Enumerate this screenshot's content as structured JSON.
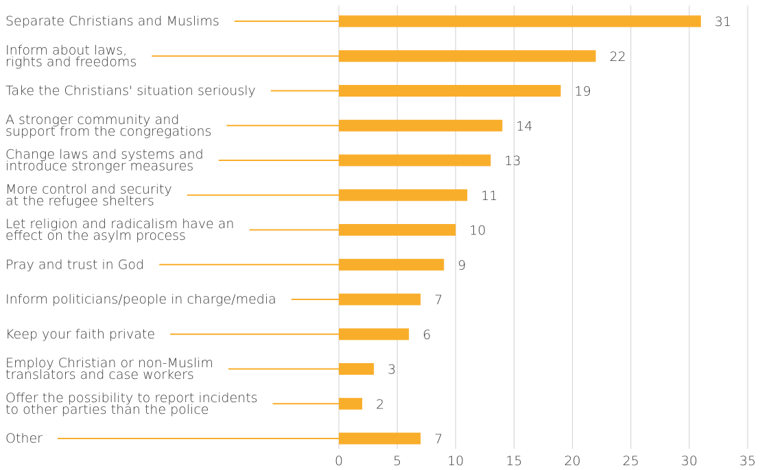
{
  "colors": {
    "bar": "#F9AE2B",
    "grid": "#cfcfcf",
    "text": "#3a3a3a"
  },
  "chart_data": {
    "type": "bar",
    "orientation": "horizontal",
    "categories": [
      [
        "Separate Christians and Muslims"
      ],
      [
        "Inform about laws,",
        "rights and freedoms"
      ],
      [
        "Take the Christians' situation seriously"
      ],
      [
        "A stronger community and",
        "support from the congregations"
      ],
      [
        "Change laws and systems and",
        "introduce stronger measures"
      ],
      [
        "More control and security",
        "at the refugee shelters"
      ],
      [
        "Let religion and radicalism have an",
        "effect on the asylm process"
      ],
      [
        "Pray and trust in God"
      ],
      [
        "Inform politicians/people in charge/media"
      ],
      [
        "Keep your faith private"
      ],
      [
        "Employ Christian or non-Muslim",
        "translators and case workers"
      ],
      [
        "Offer the possibility to report incidents",
        "to other parties than the police"
      ],
      [
        "Other"
      ]
    ],
    "values": [
      31,
      22,
      19,
      14,
      13,
      11,
      10,
      9,
      7,
      6,
      3,
      2,
      7
    ],
    "xlim": [
      0,
      35
    ],
    "xticks": [
      0,
      5,
      10,
      15,
      20,
      25,
      30,
      35
    ],
    "grid": "vertical",
    "data_labels": true,
    "leader_lines": true
  }
}
